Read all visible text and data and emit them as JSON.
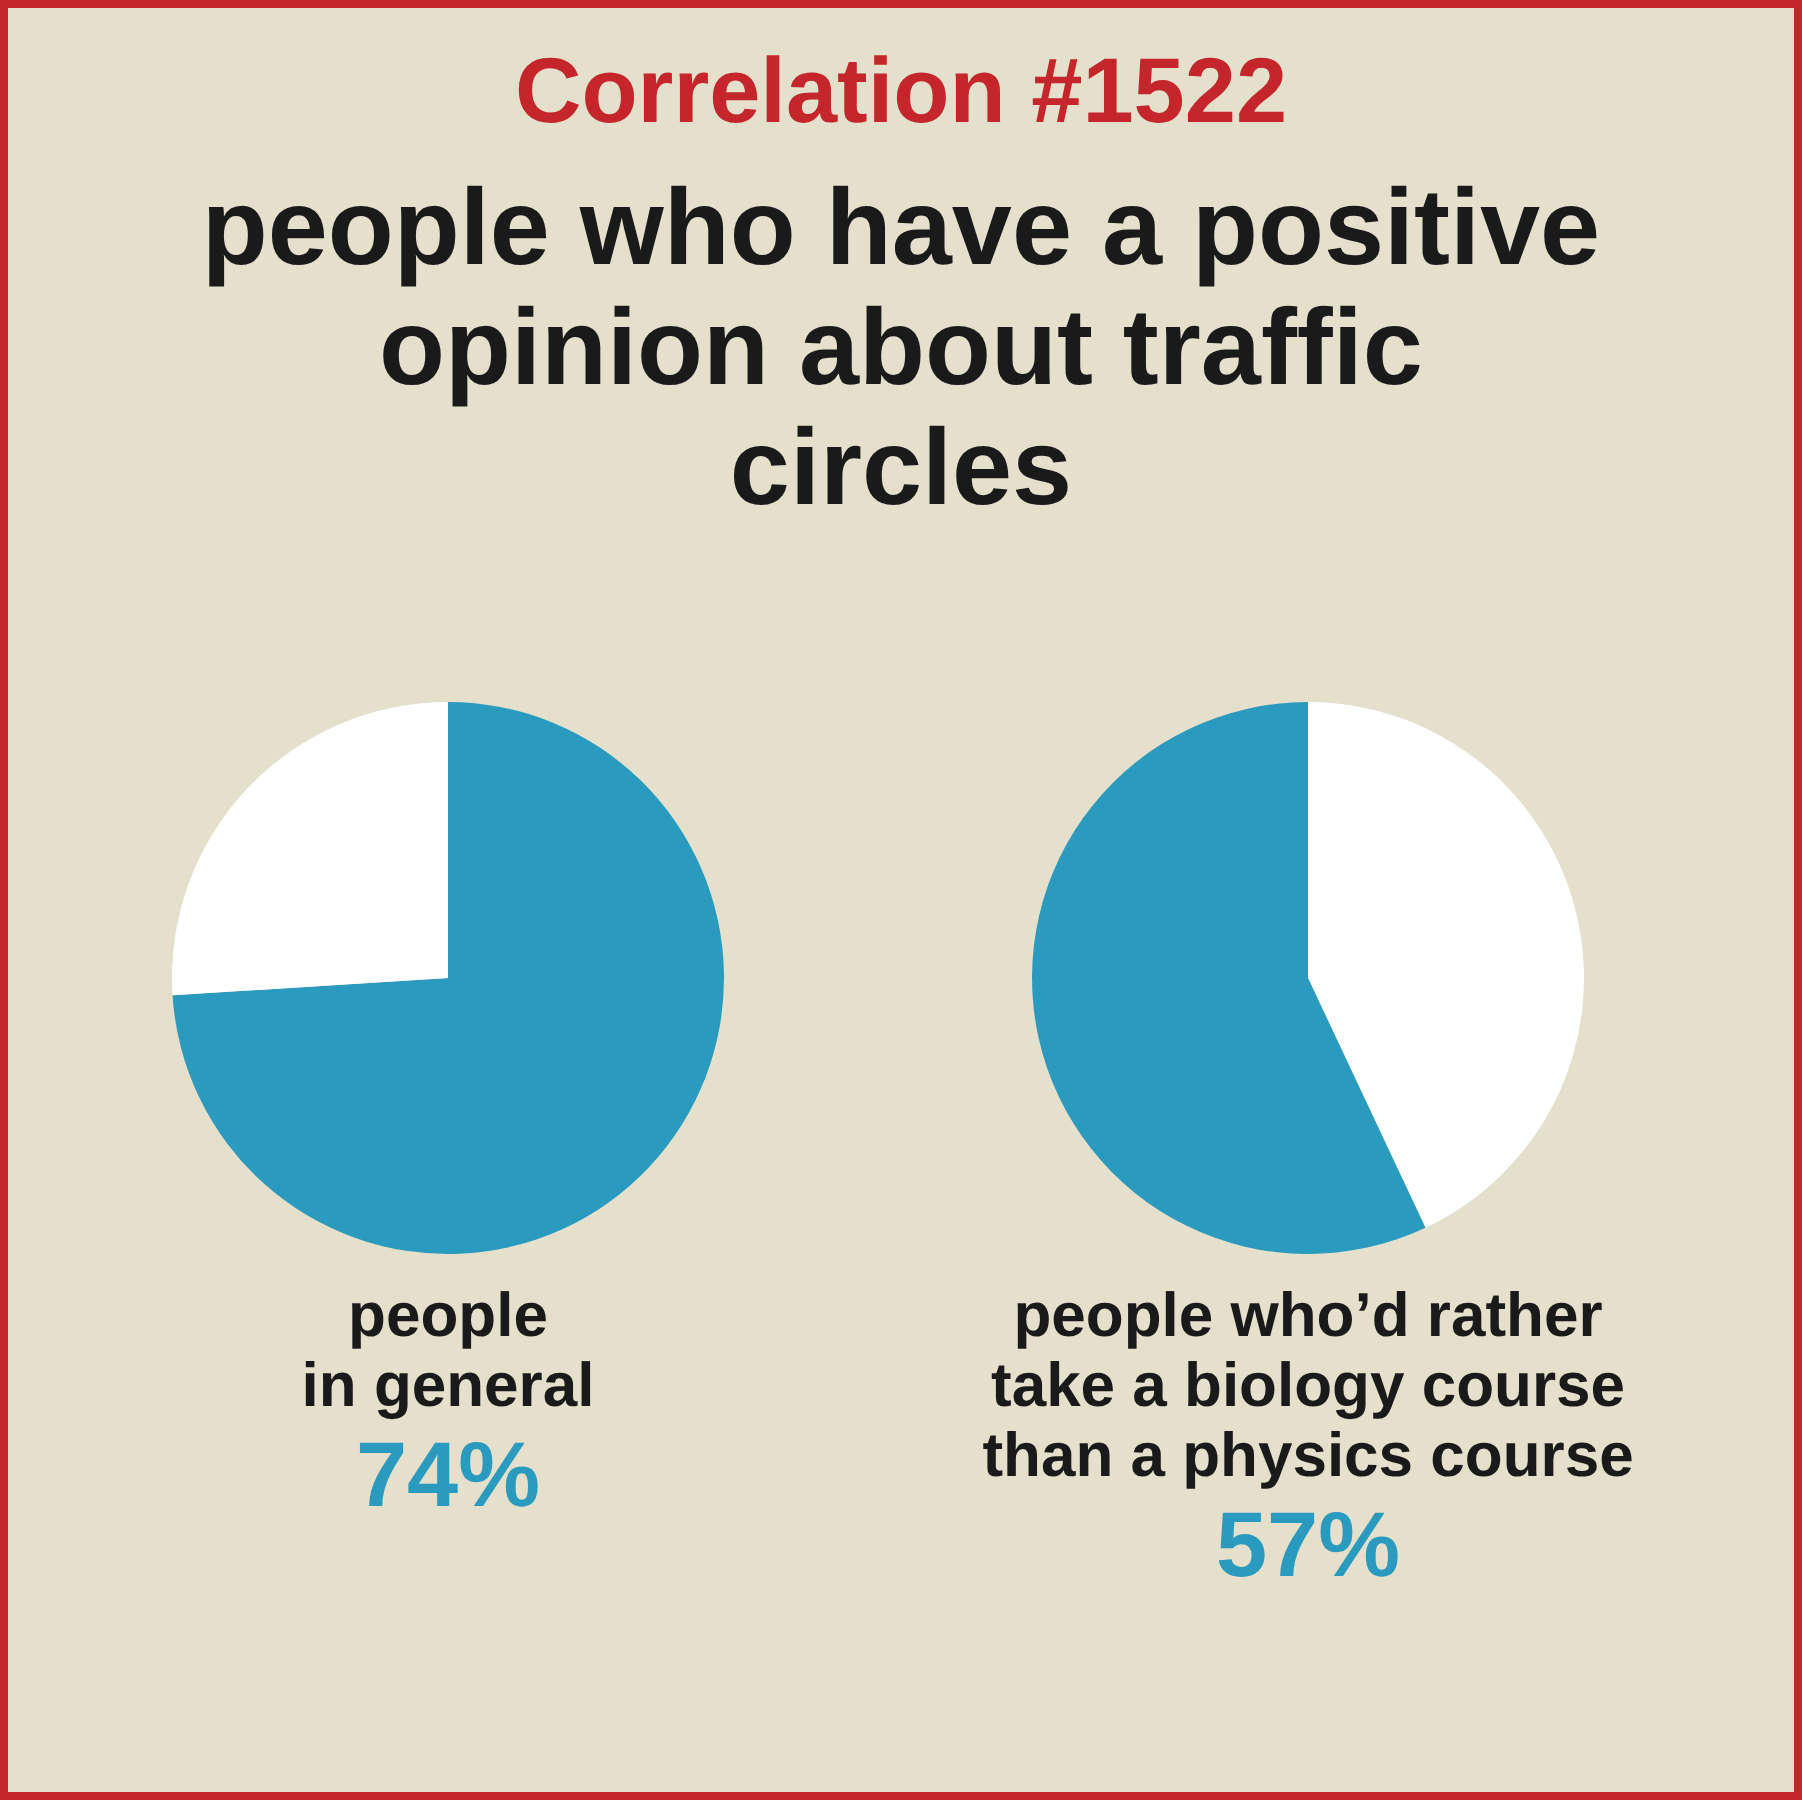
{
  "chart_data": [
    {
      "type": "pie",
      "title": "Correlation #1522",
      "subtitle": "people who have a positive opinion about traffic circles",
      "categories": [
        null,
        null
      ],
      "values": [
        74,
        26
      ],
      "colors": [
        "#2a9bbf",
        "#ffffff"
      ],
      "xlabel": "people\nin general",
      "value_labels": [
        "74%",
        null
      ]
    },
    {
      "type": "pie",
      "categories": [
        null,
        null
      ],
      "values": [
        43,
        57
      ],
      "colors": [
        "#ffffff",
        "#2a9bbf"
      ],
      "xlabel": "people who’d rather\ntake a biology course\nthan a physics course",
      "value_labels": [
        null,
        "57%"
      ]
    }
  ]
}
